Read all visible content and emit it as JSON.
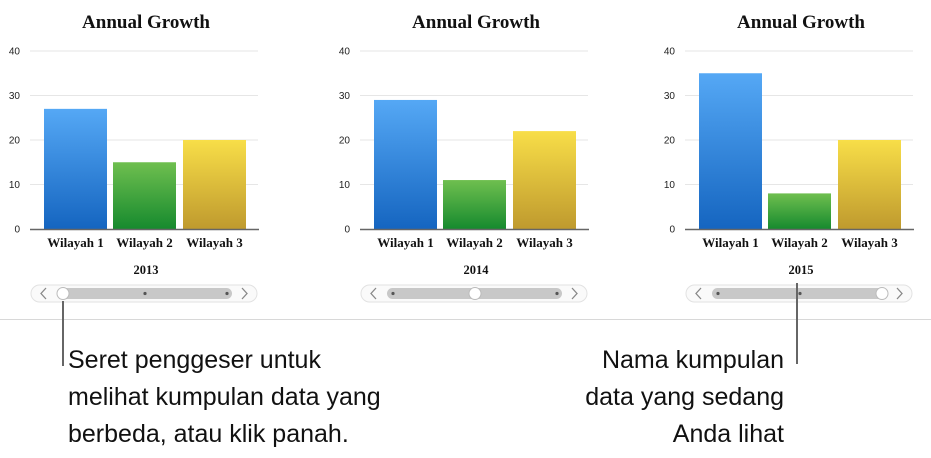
{
  "chart_data": [
    {
      "type": "bar",
      "title": "Annual Growth",
      "dataset": "2013",
      "categories": [
        "Wilayah 1",
        "Wilayah 2",
        "Wilayah 3"
      ],
      "values": [
        27,
        15,
        20
      ],
      "ylim": [
        0,
        40
      ],
      "yticks": [
        0,
        10,
        20,
        30,
        40
      ],
      "grid": true,
      "slider_position": 0
    },
    {
      "type": "bar",
      "title": "Annual Growth",
      "dataset": "2014",
      "categories": [
        "Wilayah 1",
        "Wilayah 2",
        "Wilayah 3"
      ],
      "values": [
        29,
        11,
        22
      ],
      "ylim": [
        0,
        40
      ],
      "yticks": [
        0,
        10,
        20,
        30,
        40
      ],
      "grid": true,
      "slider_position": 0.5
    },
    {
      "type": "bar",
      "title": "Annual Growth",
      "dataset": "2015",
      "categories": [
        "Wilayah 1",
        "Wilayah 2",
        "Wilayah 3"
      ],
      "values": [
        35,
        8,
        20
      ],
      "ylim": [
        0,
        40
      ],
      "yticks": [
        0,
        10,
        20,
        30,
        40
      ],
      "grid": true,
      "slider_position": 1
    }
  ],
  "colors": {
    "bar1_top": "#55a8f5",
    "bar1_bottom": "#1565c0",
    "bar2_top": "#6fbf4f",
    "bar2_bottom": "#168a2e",
    "bar3_top": "#f8de48",
    "bar3_bottom": "#bf9a2e"
  },
  "callouts": {
    "left": [
      "Seret penggeser untuk",
      "melihat kumpulan data yang",
      "berbeda, atau klik panah."
    ],
    "right": [
      "Nama kumpulan",
      "data yang sedang",
      "Anda lihat"
    ]
  }
}
